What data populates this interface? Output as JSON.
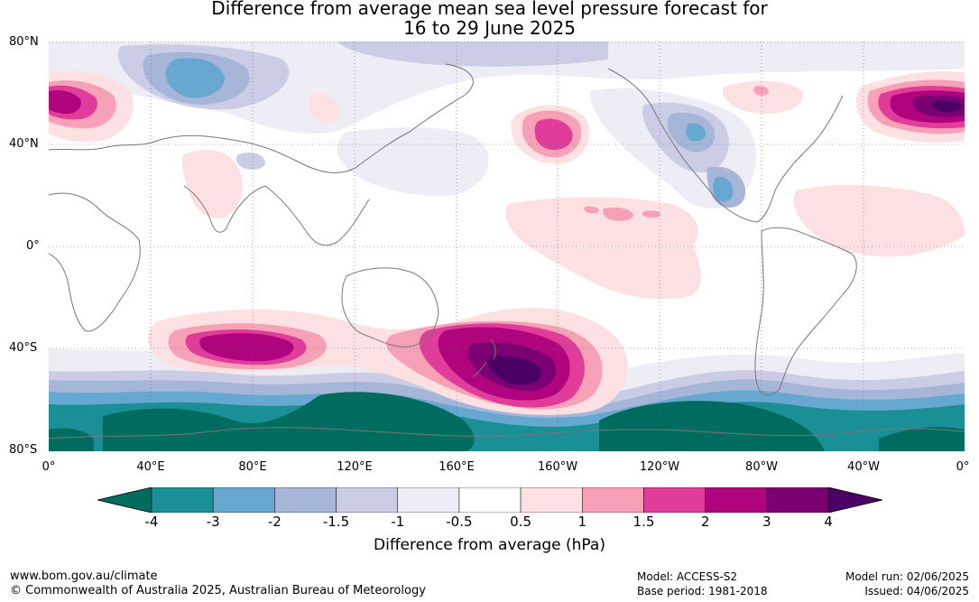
{
  "title": {
    "line1": "Difference from average mean sea level pressure forecast for",
    "line2": "16 to 29 June 2025"
  },
  "map": {
    "lat_labels": [
      "80°N",
      "40°N",
      "0°",
      "40°S",
      "80°S"
    ],
    "lon_labels": [
      "0°",
      "40°E",
      "80°E",
      "120°E",
      "160°E",
      "160°W",
      "120°W",
      "80°W",
      "40°W",
      "0°"
    ],
    "anomaly_colors": {
      "below_-4": "#006b5f",
      "-4_to_-3": "#1a8f96",
      "-3_to_-2": "#66a8d0",
      "-2_to_-1.5": "#a5b6d8",
      "-1.5_to_-1": "#cbcde6",
      "-1_to_-0.5": "#eeecf5",
      "-0.5_to_0.5": "#ffffff",
      "0.5_to_1": "#fde0e1",
      "1_to_1.5": "#f7a1b7",
      "1.5_to_2": "#e03c9a",
      "2_to_3": "#b0047f",
      "3_to_4": "#7b0173",
      "above_4": "#4b0064"
    },
    "coastline_color": "#777777"
  },
  "colorbar": {
    "colors": [
      "#006b5f",
      "#1a8f96",
      "#66a8d0",
      "#a5b6d8",
      "#cbcde6",
      "#eeecf5",
      "#ffffff",
      "#fde0e1",
      "#f7a1b7",
      "#e03c9a",
      "#b0047f",
      "#7b0173",
      "#4b0064"
    ],
    "ticks": [
      "-4",
      "-3",
      "-2",
      "-1.5",
      "-1",
      "-0.5",
      "0.5",
      "1",
      "1.5",
      "2",
      "3",
      "4"
    ],
    "label": "Difference from average (hPa)"
  },
  "footer": {
    "website": "www.bom.gov.au/climate",
    "copyright": "© Commonwealth of Australia 2025, Australian Bureau of Meteorology",
    "model": "Model: ACCESS-S2",
    "base_period": "Base period: 1981-2018",
    "model_run": "Model run: 02/06/2025",
    "issued": "Issued: 04/06/2025"
  }
}
